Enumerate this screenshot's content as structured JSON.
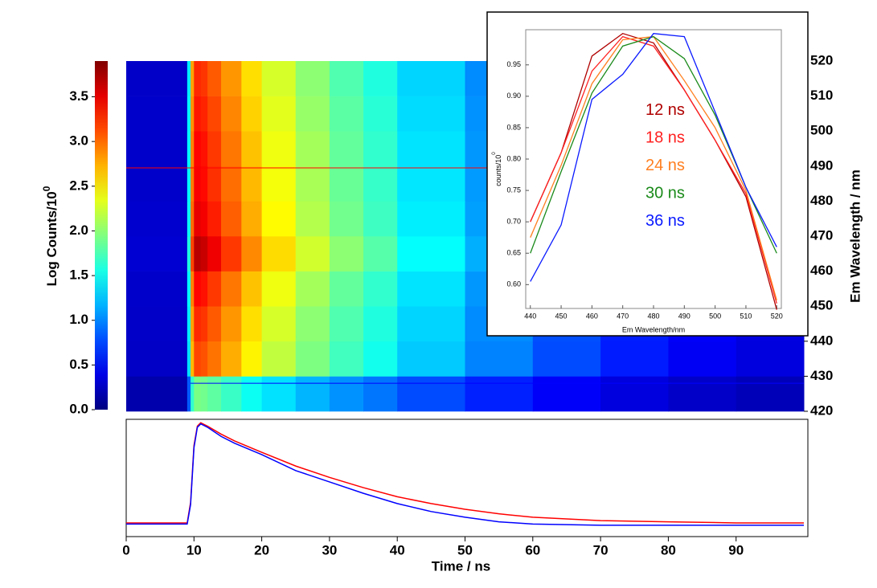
{
  "chart_data": [
    {
      "type": "heatmap",
      "colorbar_label": "Log Counts/10",
      "colorbar_label_sup": "0",
      "clim": [
        0,
        3.9
      ],
      "colorbar_ticks": [
        {
          "value": 0,
          "label": "0.0"
        },
        0.5,
        {
          "value": 1,
          "label": "1.0"
        },
        1.5,
        {
          "value": 2,
          "label": "2.0"
        },
        2.5,
        {
          "value": 3,
          "label": "3.0"
        },
        3.5
      ],
      "ylabel": "Em Wavelength / nm",
      "xlim": [
        0,
        100
      ],
      "ylim": [
        420,
        520
      ],
      "yticks": [
        420,
        430,
        440,
        450,
        460,
        470,
        480,
        490,
        500,
        510,
        520
      ],
      "x_edges": [
        0,
        9,
        9.5,
        10,
        11,
        12,
        14,
        17,
        20,
        25,
        30,
        35,
        40,
        50,
        60,
        70,
        80,
        90,
        100
      ],
      "y_edges": [
        420,
        430,
        440,
        450,
        460,
        470,
        480,
        490,
        500,
        510,
        520
      ],
      "z": [
        [
          0.17,
          0.83,
          1.65,
          1.93,
          1.9,
          1.82,
          1.68,
          1.51,
          1.35,
          1.18,
          1.05,
          0.94,
          0.77,
          0.61,
          0.47,
          0.36,
          0.28,
          0.22
        ],
        [
          0.27,
          1.35,
          2.7,
          3.15,
          3.1,
          2.97,
          2.75,
          2.48,
          2.2,
          1.94,
          1.71,
          1.53,
          1.26,
          0.99,
          0.77,
          0.59,
          0.45,
          0.36
        ],
        [
          0.28,
          1.4,
          2.79,
          3.26,
          3.21,
          3.07,
          2.84,
          2.56,
          2.28,
          2.0,
          1.77,
          1.58,
          1.3,
          1.02,
          0.79,
          0.6,
          0.47,
          0.37
        ],
        [
          0.29,
          1.46,
          2.91,
          3.4,
          3.35,
          3.2,
          2.96,
          2.67,
          2.38,
          2.09,
          1.84,
          1.65,
          1.36,
          1.07,
          0.82,
          0.63,
          0.49,
          0.39
        ],
        [
          0.32,
          1.58,
          3.15,
          3.68,
          3.62,
          3.47,
          3.2,
          2.89,
          2.57,
          2.26,
          2.0,
          1.79,
          1.47,
          1.16,
          0.89,
          0.68,
          0.53,
          0.42
        ],
        [
          0.3,
          1.5,
          3.0,
          3.5,
          3.45,
          3.3,
          3.05,
          2.75,
          2.45,
          2.15,
          1.9,
          1.7,
          1.4,
          1.1,
          0.85,
          0.65,
          0.5,
          0.4
        ],
        [
          0.29,
          1.47,
          2.94,
          3.43,
          3.38,
          3.23,
          2.99,
          2.7,
          2.4,
          2.11,
          1.86,
          1.67,
          1.37,
          1.08,
          0.83,
          0.64,
          0.49,
          0.39
        ],
        [
          0.29,
          1.46,
          2.91,
          3.4,
          3.35,
          3.2,
          2.96,
          2.67,
          2.38,
          2.09,
          1.84,
          1.65,
          1.36,
          1.07,
          0.82,
          0.63,
          0.49,
          0.39
        ],
        [
          0.29,
          1.43,
          2.85,
          3.33,
          3.28,
          3.14,
          2.9,
          2.61,
          2.33,
          2.04,
          1.81,
          1.62,
          1.33,
          1.05,
          0.81,
          0.62,
          0.48,
          0.38
        ],
        [
          0.28,
          1.4,
          2.79,
          3.26,
          3.21,
          3.07,
          2.84,
          2.56,
          2.28,
          2.0,
          1.77,
          1.58,
          1.3,
          1.02,
          0.79,
          0.6,
          0.47,
          0.37
        ]
      ],
      "cursor_lines": [
        {
          "color": "#ff0000",
          "y": 489.5,
          "x_start": 0
        },
        {
          "color": "#0000ff",
          "y": 428,
          "x_start": 9.5
        }
      ]
    },
    {
      "type": "line",
      "xlabel": "Time / ns",
      "xlim": [
        0,
        100
      ],
      "ylim": [
        0,
        1.03
      ],
      "xticks": [
        0,
        10,
        20,
        30,
        40,
        50,
        60,
        70,
        80,
        90
      ],
      "x": [
        0,
        5,
        9,
        9.5,
        10,
        10.5,
        11,
        12,
        14,
        16,
        20,
        25,
        30,
        35,
        40,
        45,
        50,
        55,
        60,
        70,
        80,
        90,
        100
      ],
      "series": [
        {
          "color": "#ff0000",
          "values": [
            0.12,
            0.12,
            0.12,
            0.3,
            0.8,
            0.97,
            1.0,
            0.97,
            0.9,
            0.84,
            0.74,
            0.62,
            0.52,
            0.43,
            0.35,
            0.29,
            0.24,
            0.2,
            0.17,
            0.14,
            0.13,
            0.12,
            0.12
          ]
        },
        {
          "color": "#0000ff",
          "values": [
            0.11,
            0.11,
            0.11,
            0.28,
            0.78,
            0.96,
            0.99,
            0.96,
            0.88,
            0.82,
            0.72,
            0.58,
            0.48,
            0.38,
            0.29,
            0.22,
            0.17,
            0.13,
            0.11,
            0.1,
            0.1,
            0.1,
            0.1
          ]
        }
      ]
    },
    {
      "type": "line",
      "ylabel": "counts/10",
      "ylabel_sup": "0",
      "xlabel": "Em Wavelength/nm",
      "xlim": [
        438.5,
        521.5
      ],
      "ylim": [
        0.562,
        1.006
      ],
      "xticks": [
        440,
        450,
        460,
        470,
        480,
        490,
        500,
        510,
        520
      ],
      "yticks": [
        {
          "value": 0.6,
          "label": "0.60"
        },
        0.65,
        {
          "value": 0.7,
          "label": "0.70"
        },
        0.75,
        {
          "value": 0.8,
          "label": "0.80"
        },
        0.85,
        {
          "value": 0.9,
          "label": "0.90"
        },
        0.95
      ],
      "legend": "center",
      "x": [
        440,
        450,
        460,
        470,
        480,
        490,
        500,
        510,
        520
      ],
      "series": [
        {
          "name": "12 ns",
          "color": "#b00000",
          "values": [
            0.7,
            0.81,
            0.964,
            1.0,
            0.985,
            0.91,
            0.83,
            0.74,
            0.56
          ]
        },
        {
          "name": "18 ns",
          "color": "#ff2020",
          "values": [
            0.7,
            0.81,
            0.94,
            0.995,
            0.98,
            0.91,
            0.83,
            0.745,
            0.57
          ]
        },
        {
          "name": "24 ns",
          "color": "#ff7f20",
          "values": [
            0.675,
            0.79,
            0.92,
            0.99,
            0.995,
            0.925,
            0.85,
            0.75,
            0.575
          ]
        },
        {
          "name": "30 ns",
          "color": "#1a8a1a",
          "values": [
            0.65,
            0.78,
            0.905,
            0.98,
            0.995,
            0.96,
            0.87,
            0.755,
            0.65
          ]
        },
        {
          "name": "36 ns",
          "color": "#0a1aff",
          "values": [
            0.605,
            0.695,
            0.895,
            0.935,
            1.0,
            0.995,
            0.875,
            0.755,
            0.66
          ]
        }
      ]
    }
  ]
}
